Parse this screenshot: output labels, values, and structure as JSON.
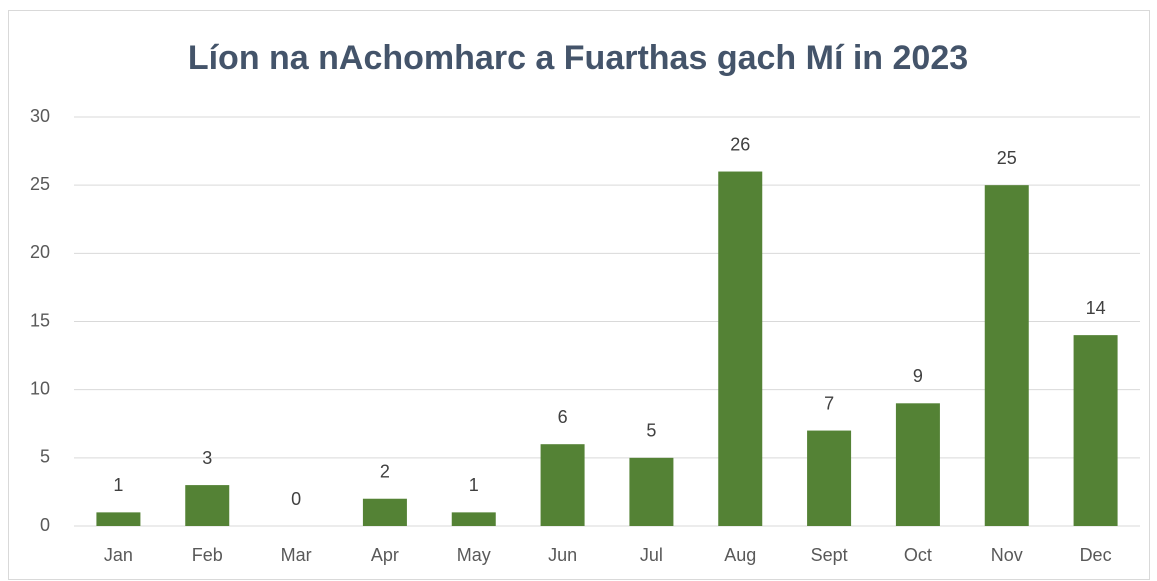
{
  "chart_data": {
    "type": "bar",
    "title": "Líon na nAchomharc a Fuarthas gach Mí in 2023",
    "categories": [
      "Jan",
      "Feb",
      "Mar",
      "Apr",
      "May",
      "Jun",
      "Jul",
      "Aug",
      "Sept",
      "Oct",
      "Nov",
      "Dec"
    ],
    "values": [
      1,
      3,
      0,
      2,
      1,
      6,
      5,
      26,
      7,
      9,
      25,
      14
    ],
    "color": "#548235",
    "ylim": [
      0,
      30
    ],
    "yticks": [
      0,
      5,
      10,
      15,
      20,
      25,
      30
    ],
    "grid": true
  }
}
